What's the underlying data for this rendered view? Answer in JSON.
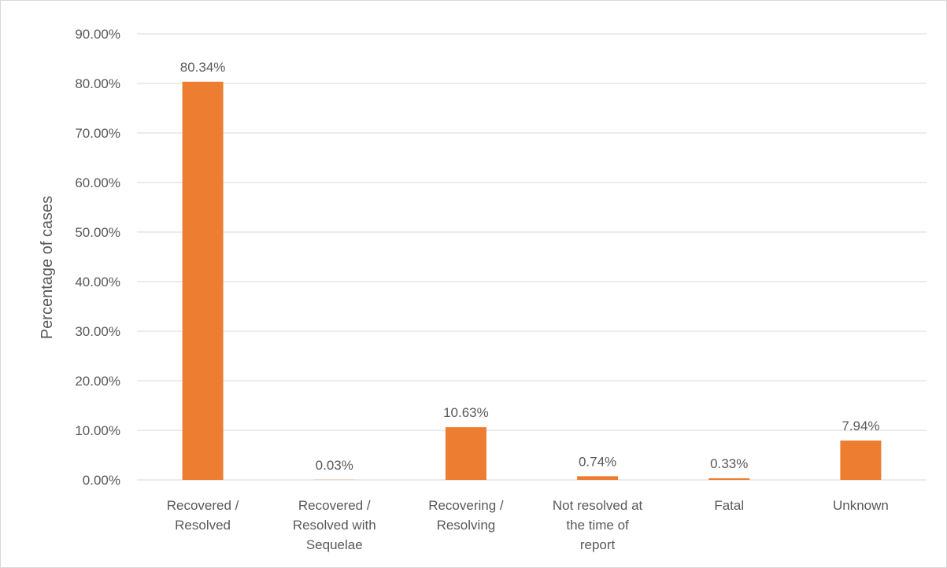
{
  "chart_data": {
    "type": "bar",
    "title": "",
    "xlabel": "",
    "ylabel": "Percentage of cases",
    "ylim": [
      0,
      90
    ],
    "y_ticks": [
      "0.00%",
      "10.00%",
      "20.00%",
      "30.00%",
      "40.00%",
      "50.00%",
      "60.00%",
      "70.00%",
      "80.00%",
      "90.00%"
    ],
    "categories": [
      [
        "Recovered /",
        "Resolved"
      ],
      [
        "Recovered /",
        "Resolved with",
        "Sequelae"
      ],
      [
        "Recovering /",
        "Resolving"
      ],
      [
        "Not resolved at",
        "the time of",
        "report"
      ],
      [
        "Fatal"
      ],
      [
        "Unknown"
      ]
    ],
    "values": [
      80.34,
      0.03,
      10.63,
      0.74,
      0.33,
      7.94
    ],
    "data_labels": [
      "80.34%",
      "0.03%",
      "10.63%",
      "0.74%",
      "0.33%",
      "7.94%"
    ],
    "bar_color": "#ed7d31",
    "grid": true,
    "legend": "none"
  }
}
